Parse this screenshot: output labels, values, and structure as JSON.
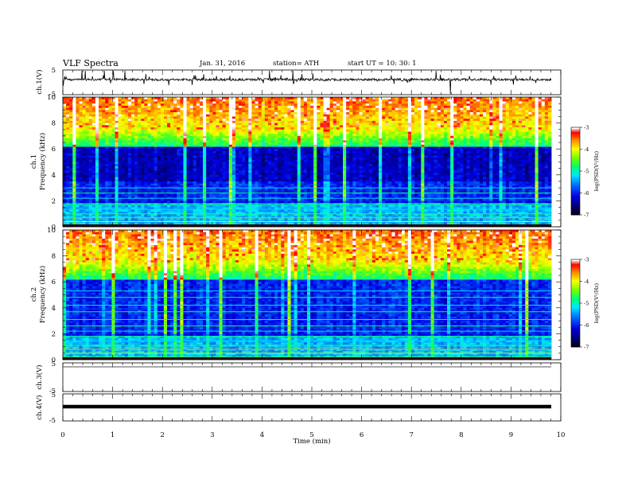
{
  "header": {
    "title": "VLF  Spectra",
    "date": "Jan. 31, 2016",
    "station": "station= ATH",
    "start": "start  UT =   10: 30: 1"
  },
  "chart_data": [
    {
      "type": "line",
      "name": "ch1-waveform",
      "ylabel": "ch.1(V)",
      "ylim": [
        -5,
        5
      ],
      "ytick_labels": [
        "5",
        "-5"
      ],
      "description_values": {
        "baseline_v": 0,
        "amplitude_v": 1.2
      }
    },
    {
      "type": "heatmap",
      "name": "ch1-spectrogram",
      "ylabel": "ch.1\nFrequency  (kHz)",
      "ylabel_line1": "ch.1",
      "ylabel_line2": "Frequency  (kHz)",
      "ylim": [
        0,
        10
      ],
      "ytick_labels": [
        "0",
        "2",
        "4",
        "6",
        "8",
        "10"
      ],
      "xlim": [
        0,
        10
      ],
      "colorbar": {
        "label": "log(PSD(V²/Hz)",
        "range": [
          -7,
          -3
        ],
        "tick_labels": [
          "-3",
          "-4",
          "-5",
          "-6",
          "-7"
        ]
      }
    },
    {
      "type": "heatmap",
      "name": "ch2-spectrogram",
      "ylabel": "ch.2\nFrequency  (kHz)",
      "ylabel_line1": "ch.2",
      "ylabel_line2": "Frequency  (kHz)",
      "ylim": [
        0,
        10
      ],
      "ytick_labels": [
        "0",
        "2",
        "4",
        "6",
        "8",
        "10"
      ],
      "xlim": [
        0,
        10
      ],
      "colorbar": {
        "label": "log(PSD(V²/Hz)",
        "range": [
          -7,
          -3
        ],
        "tick_labels": [
          "-3",
          "-4",
          "-5",
          "-6",
          "-7"
        ]
      }
    },
    {
      "type": "line",
      "name": "ch3-waveform",
      "ylabel": "ch.3(V)",
      "ylim": [
        -5,
        5
      ],
      "ytick_labels": [
        "5",
        "-5"
      ]
    },
    {
      "type": "line",
      "name": "ch4-waveform",
      "ylabel": "ch.4(V)",
      "ylim": [
        -5,
        5
      ],
      "ytick_labels": [
        "5",
        "-5"
      ]
    }
  ],
  "xaxis": {
    "label": "Time  (min)",
    "range": [
      0,
      10
    ],
    "tick_labels": [
      "0",
      "1",
      "2",
      "3",
      "4",
      "5",
      "6",
      "7",
      "8",
      "9",
      "10"
    ]
  },
  "colors": {
    "colormap": [
      "#000000",
      "#000080",
      "#0000ff",
      "#00aaff",
      "#00ffff",
      "#00ff66",
      "#66ff00",
      "#ffff00",
      "#ff8000",
      "#ff0000",
      "#ffffff"
    ]
  }
}
